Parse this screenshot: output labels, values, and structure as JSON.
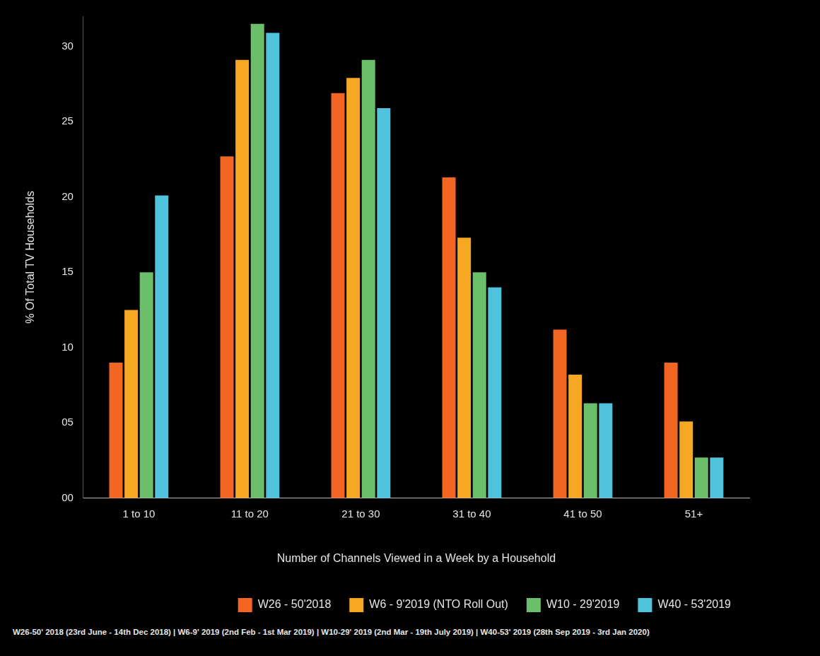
{
  "chart_data": {
    "type": "bar",
    "x_label": "Number of Channels Viewed in a Week by a Household",
    "y_label": "% Of Total TV Households",
    "categories": [
      "1 to 10",
      "11 to 20",
      "21 to 30",
      "31 to 40",
      "41 to 50",
      "51+"
    ],
    "series": [
      {
        "name": "W26 - 50'2018",
        "color": "#f26522",
        "values": [
          9.0,
          22.7,
          26.9,
          21.3,
          11.2,
          9.0
        ]
      },
      {
        "name": "W6 - 9'2019 (NTO Roll Out)",
        "color": "#f7a823",
        "values": [
          12.5,
          29.1,
          27.9,
          17.3,
          8.2,
          5.1
        ]
      },
      {
        "name": "W10 - 29'2019",
        "color": "#6bbf6b",
        "values": [
          15.0,
          31.5,
          29.1,
          15.0,
          6.3,
          2.7
        ]
      },
      {
        "name": "W40 - 53'2019",
        "color": "#4fc3dc",
        "values": [
          20.1,
          30.9,
          25.9,
          14.0,
          6.3,
          2.7
        ]
      }
    ],
    "ylim": [
      0,
      32
    ],
    "yticks": [
      {
        "value": 0,
        "label": "00"
      },
      {
        "value": 5,
        "label": "05"
      },
      10,
      15,
      20,
      25,
      30
    ],
    "grid": false,
    "legend": "bottom-right",
    "footnote": "W26-50' 2018 (23rd June - 14th Dec 2018)  |  W6-9' 2019 (2nd Feb - 1st Mar 2019)  |  W10-29' 2019 (2nd Mar - 19th July 2019)  |  W40-53' 2019 (28th Sep 2019 - 3rd Jan 2020)"
  }
}
